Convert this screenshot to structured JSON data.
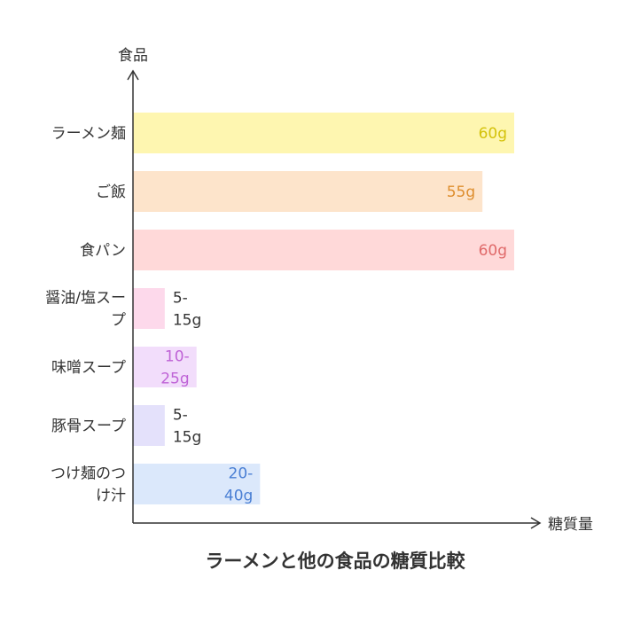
{
  "chart_data": {
    "type": "bar",
    "orientation": "horizontal",
    "title": "ラーメンと他の食品の糖質比較",
    "ylabel": "食品",
    "xlabel": "糖質量",
    "xlim": [
      0,
      60
    ],
    "grid": false,
    "categories": [
      {
        "lines": [
          "ラーメン麺"
        ]
      },
      {
        "lines": [
          "ご飯"
        ]
      },
      {
        "lines": [
          "食パン"
        ]
      },
      {
        "lines": [
          "醤油/塩スー",
          "プ"
        ]
      },
      {
        "lines": [
          "味噌スープ"
        ]
      },
      {
        "lines": [
          "豚骨スープ"
        ]
      },
      {
        "lines": [
          "つけ麺のつ",
          "け汁"
        ]
      }
    ],
    "values": [
      60,
      55,
      60,
      5,
      10,
      5,
      20
    ],
    "ranges": [
      null,
      null,
      null,
      [
        5,
        15
      ],
      [
        10,
        25
      ],
      [
        5,
        15
      ],
      [
        20,
        40
      ]
    ],
    "data_labels": [
      {
        "lines": [
          "60g"
        ],
        "color": "#d4c20a",
        "inside": true
      },
      {
        "lines": [
          "55g"
        ],
        "color": "#de8e2e",
        "inside": true
      },
      {
        "lines": [
          "60g"
        ],
        "color": "#e06a6a",
        "inside": true
      },
      {
        "lines": [
          "5-",
          "15g"
        ],
        "color": "#333333",
        "inside": false
      },
      {
        "lines": [
          "10-",
          "25g"
        ],
        "color": "#bf63d6",
        "inside": true
      },
      {
        "lines": [
          "5-",
          "15g"
        ],
        "color": "#333333",
        "inside": false
      },
      {
        "lines": [
          "20-",
          "40g"
        ],
        "color": "#4a7fd4",
        "inside": true
      }
    ],
    "bar_colors": [
      "#fef6b0",
      "#fde4cb",
      "#ffd9d9",
      "#fdd9eb",
      "#f2ddfb",
      "#e4e1fb",
      "#dbe8fb"
    ]
  }
}
